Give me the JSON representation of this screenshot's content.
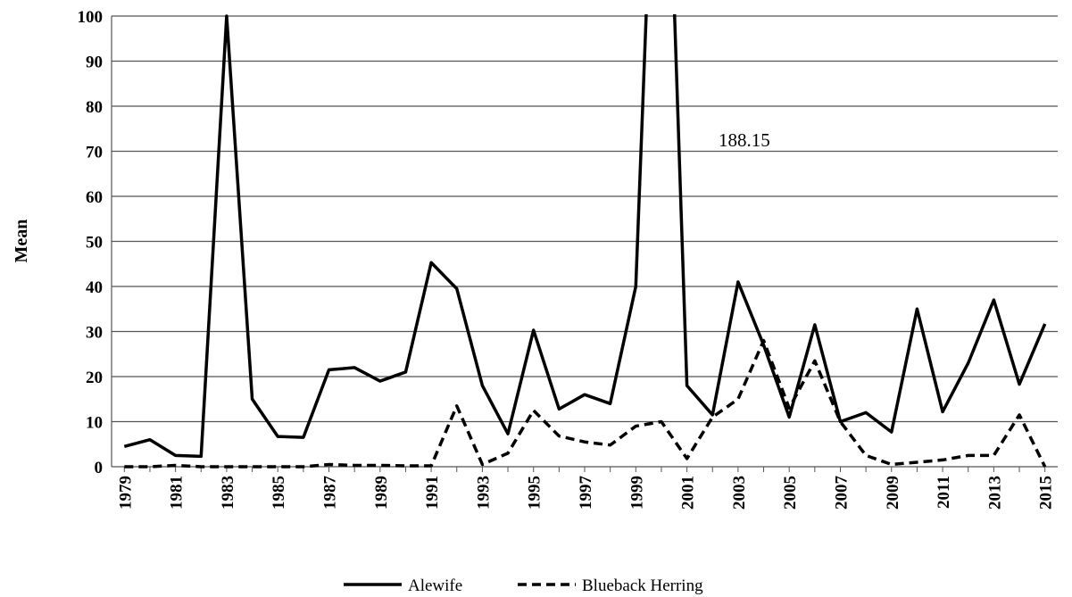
{
  "chart_data": {
    "type": "line",
    "y_label": "Mean",
    "annotation": "188.15",
    "categories": [
      "1979",
      null,
      "1981",
      null,
      "1983",
      null,
      "1985",
      null,
      "1987",
      null,
      "1989",
      null,
      "1991",
      null,
      "1993",
      null,
      "1995",
      null,
      "1997",
      null,
      "1999",
      null,
      "2001",
      null,
      "2003",
      null,
      "2005",
      null,
      "2007",
      null,
      "2009",
      null,
      "2011",
      null,
      "2013",
      null,
      "2015"
    ],
    "series": [
      {
        "name": "Alewife",
        "color": "#000000",
        "line_style": "solid",
        "values": [
          4.5,
          6,
          2.5,
          2.3,
          100,
          15,
          6.7,
          6.5,
          21.5,
          22,
          19,
          21,
          45.3,
          39.5,
          18,
          7.3,
          30.3,
          12.8,
          16,
          14,
          40,
          188.15,
          18,
          11.5,
          41,
          27,
          11,
          31.5,
          10,
          12,
          7.7,
          35,
          12.2,
          23,
          37,
          18.3,
          31.7
        ]
      },
      {
        "name": "Blueback Herring",
        "color": "#000000",
        "line_style": "dashed",
        "values": [
          0,
          0,
          0.3,
          0,
          0,
          0,
          0,
          0,
          0.5,
          0.3,
          0.3,
          0.2,
          0.2,
          13.5,
          0.5,
          3,
          12.5,
          6.8,
          5.5,
          4.8,
          9,
          10,
          1.8,
          11,
          15,
          28,
          13,
          23.5,
          10,
          2.5,
          0.5,
          1,
          1.5,
          2.5,
          2.5,
          11.5,
          0
        ]
      }
    ],
    "ylim": [
      0,
      100
    ],
    "yticks": [
      0,
      10,
      20,
      30,
      40,
      50,
      60,
      70,
      80,
      90,
      100
    ],
    "grid": true,
    "legend": "bottom"
  }
}
